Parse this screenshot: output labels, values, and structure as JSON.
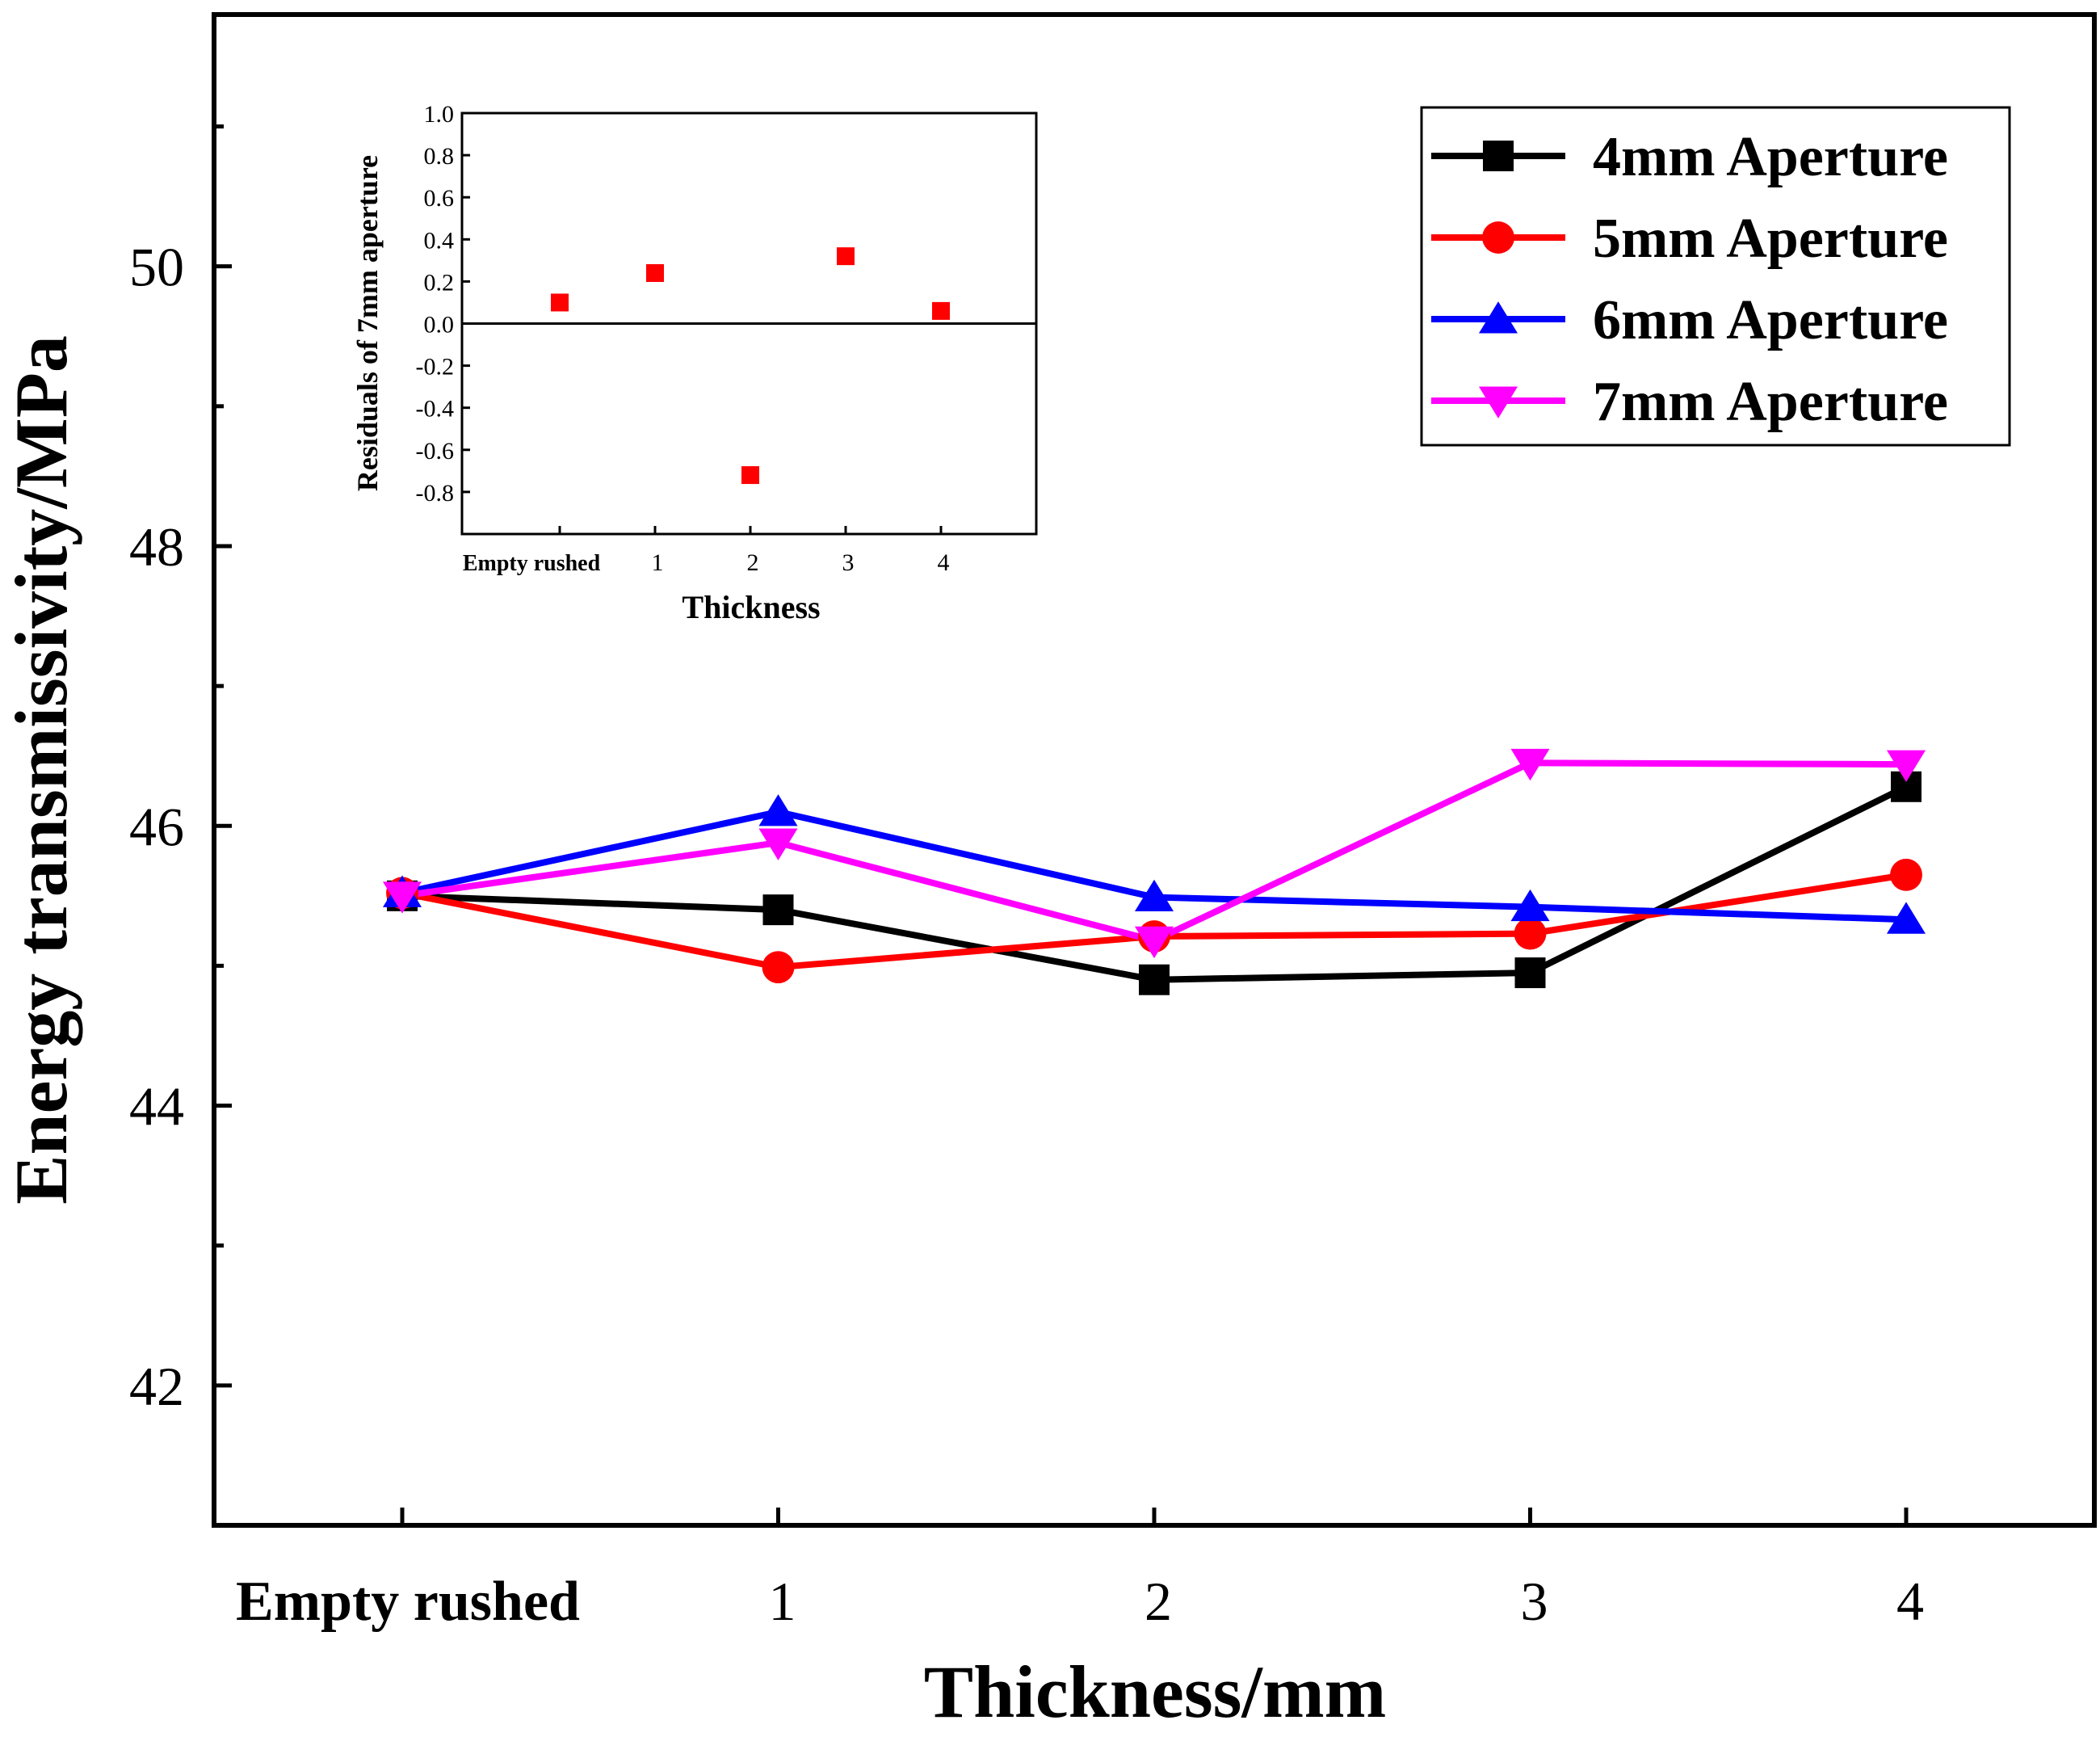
{
  "chart_data": [
    {
      "type": "line",
      "title": "",
      "xlabel": "Thickness/mm",
      "ylabel": "Energy transmissivity/MPa",
      "categories": [
        "Empty rushed",
        "1",
        "2",
        "3",
        "4"
      ],
      "ylim": [
        41,
        51.8
      ],
      "yticks": [
        42,
        44,
        46,
        48,
        50
      ],
      "ytick_labels": [
        "42",
        "44",
        "46",
        "48",
        "50"
      ],
      "legend_position": "top-right",
      "series": [
        {
          "name": "4mm Aperture",
          "color": "#000000",
          "marker": "square",
          "values": [
            45.5,
            45.4,
            44.9,
            44.95,
            46.28
          ]
        },
        {
          "name": "5mm Aperture",
          "color": "#ff0000",
          "marker": "circle",
          "values": [
            45.52,
            44.99,
            45.21,
            45.23,
            45.65
          ]
        },
        {
          "name": "6mm Aperture",
          "color": "#0000ff",
          "marker": "triangle-up",
          "values": [
            45.52,
            46.1,
            45.49,
            45.42,
            45.33
          ]
        },
        {
          "name": "7mm Aperture",
          "color": "#ff00ff",
          "marker": "triangle-down",
          "values": [
            45.5,
            45.88,
            45.18,
            46.45,
            46.44
          ]
        }
      ]
    },
    {
      "type": "scatter",
      "title": "",
      "xlabel": "Thickness",
      "ylabel": "Residuals of 7mm aperture",
      "categories": [
        "Empty rushed",
        "1",
        "2",
        "3",
        "4"
      ],
      "ylim": [
        -1.0,
        1.0
      ],
      "yticks": [
        -0.8,
        -0.6,
        -0.4,
        -0.2,
        0.0,
        0.2,
        0.4,
        0.6,
        0.8,
        1.0
      ],
      "ytick_labels": [
        "-0.8",
        "-0.6",
        "-0.4",
        "-0.2",
        "0.0",
        "0.2",
        "0.4",
        "0.6",
        "0.8",
        "1.0"
      ],
      "series": [
        {
          "name": "Residuals of 7mm aperture",
          "color": "#ff0000",
          "marker": "square",
          "values": [
            0.1,
            0.24,
            -0.72,
            0.32,
            0.06
          ]
        }
      ]
    }
  ]
}
